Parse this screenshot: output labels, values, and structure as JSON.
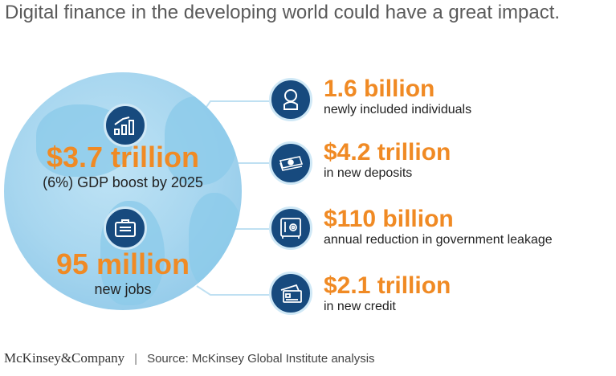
{
  "title": "Digital finance in the developing world could have a great impact.",
  "globe": {
    "gdp": {
      "value": "$3.7 trillion",
      "label": "(6%) GDP boost by 2025",
      "icon": "bar-chart-growth-icon"
    },
    "jobs": {
      "value": "95 million",
      "label": "new jobs",
      "icon": "briefcase-icon"
    }
  },
  "stats": [
    {
      "value": "1.6 billion",
      "label": "newly included individuals",
      "icon": "person-icon"
    },
    {
      "value": "$4.2 trillion",
      "label": "in new deposits",
      "icon": "money-stack-icon"
    },
    {
      "value": "$110 billion",
      "label": "annual reduction in government leakage",
      "icon": "safe-icon"
    },
    {
      "value": "$2.1 trillion",
      "label": "in new credit",
      "icon": "credit-card-icon"
    }
  ],
  "footer": {
    "logo": "McKinsey&Company",
    "source": "Source: McKinsey Global Institute analysis"
  },
  "colors": {
    "orange": "#f08a24",
    "navy": "#174a7e",
    "globe": "#a7d6ef"
  }
}
